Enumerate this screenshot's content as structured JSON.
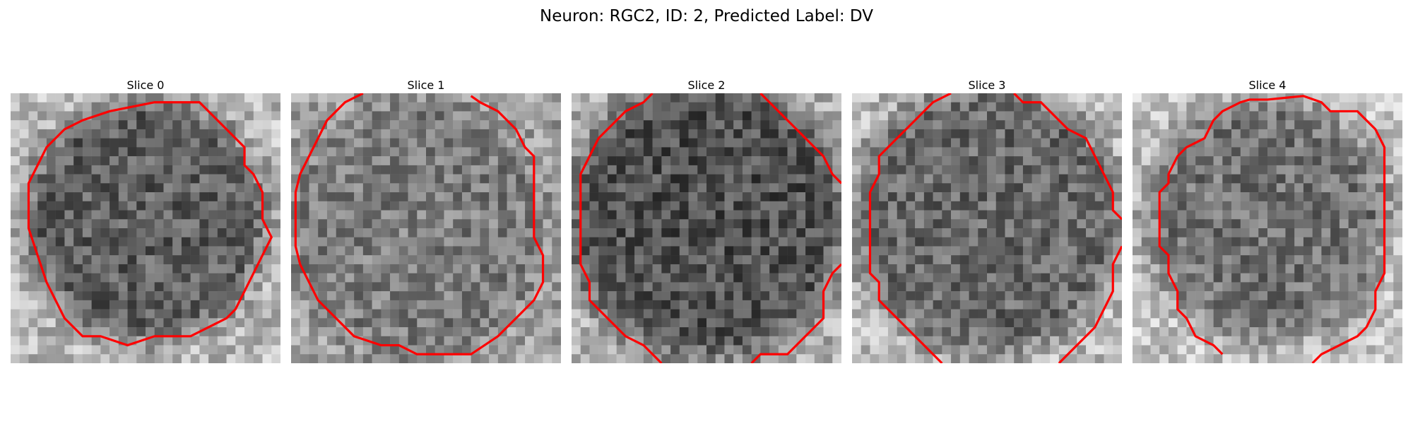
{
  "figure": {
    "title": "Neuron: RGC2, ID: 2, Predicted Label: DV"
  },
  "panels": [
    {
      "title": "Slice 0"
    },
    {
      "title": "Slice 1"
    },
    {
      "title": "Slice 2"
    },
    {
      "title": "Slice 3"
    },
    {
      "title": "Slice 4"
    }
  ],
  "colors": {
    "contour": "#ff0000",
    "background": "#ffffff"
  }
}
